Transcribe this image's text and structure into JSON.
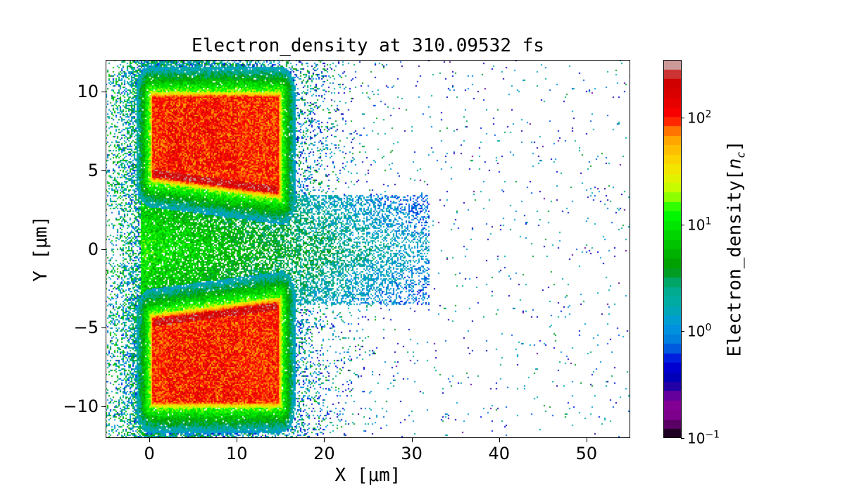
{
  "chart_data": {
    "type": "heatmap",
    "title": "Electron_density at 310.09532 fs",
    "xlabel": "X [μm]",
    "ylabel": "Y [μm]",
    "xlim": [
      -5,
      55
    ],
    "ylim": [
      -12,
      12
    ],
    "xticks": [
      0,
      10,
      20,
      30,
      40,
      50
    ],
    "xtick_labels": [
      "0",
      "10",
      "20",
      "30",
      "40",
      "50"
    ],
    "yticks": [
      -10,
      -5,
      0,
      5,
      10
    ],
    "ytick_labels": [
      "−10",
      "−5",
      "0",
      "5",
      "10"
    ],
    "grid": false,
    "colorbar": {
      "label": "Electron_density[n_c]",
      "label_base": "Electron_density[",
      "label_var": "n",
      "label_sub": "c",
      "label_end": "]",
      "scale": "log",
      "colormap": "nipy_spectral",
      "levels": 40,
      "clim": [
        0.1,
        350
      ],
      "ticks": [
        0.1,
        1,
        10,
        100
      ],
      "tick_labels": [
        {
          "base": "10",
          "exp": "−1"
        },
        {
          "base": "10",
          "exp": "0"
        },
        {
          "base": "10",
          "exp": "1"
        },
        {
          "base": "10",
          "exp": "2"
        }
      ]
    },
    "features": [
      {
        "name": "upper target slab",
        "x": [
          0,
          15
        ],
        "y": [
          3.3,
          10
        ],
        "density": 100
      },
      {
        "name": "lower target slab",
        "x": [
          0,
          15
        ],
        "y": [
          -10,
          -3
        ],
        "density": 100
      },
      {
        "name": "channel plasma",
        "x": [
          0,
          30
        ],
        "y": [
          -3,
          3
        ],
        "density": 10
      },
      {
        "name": "scattered electrons",
        "x": [
          -5,
          55
        ],
        "y": [
          -12,
          12
        ],
        "density": 1
      }
    ]
  }
}
